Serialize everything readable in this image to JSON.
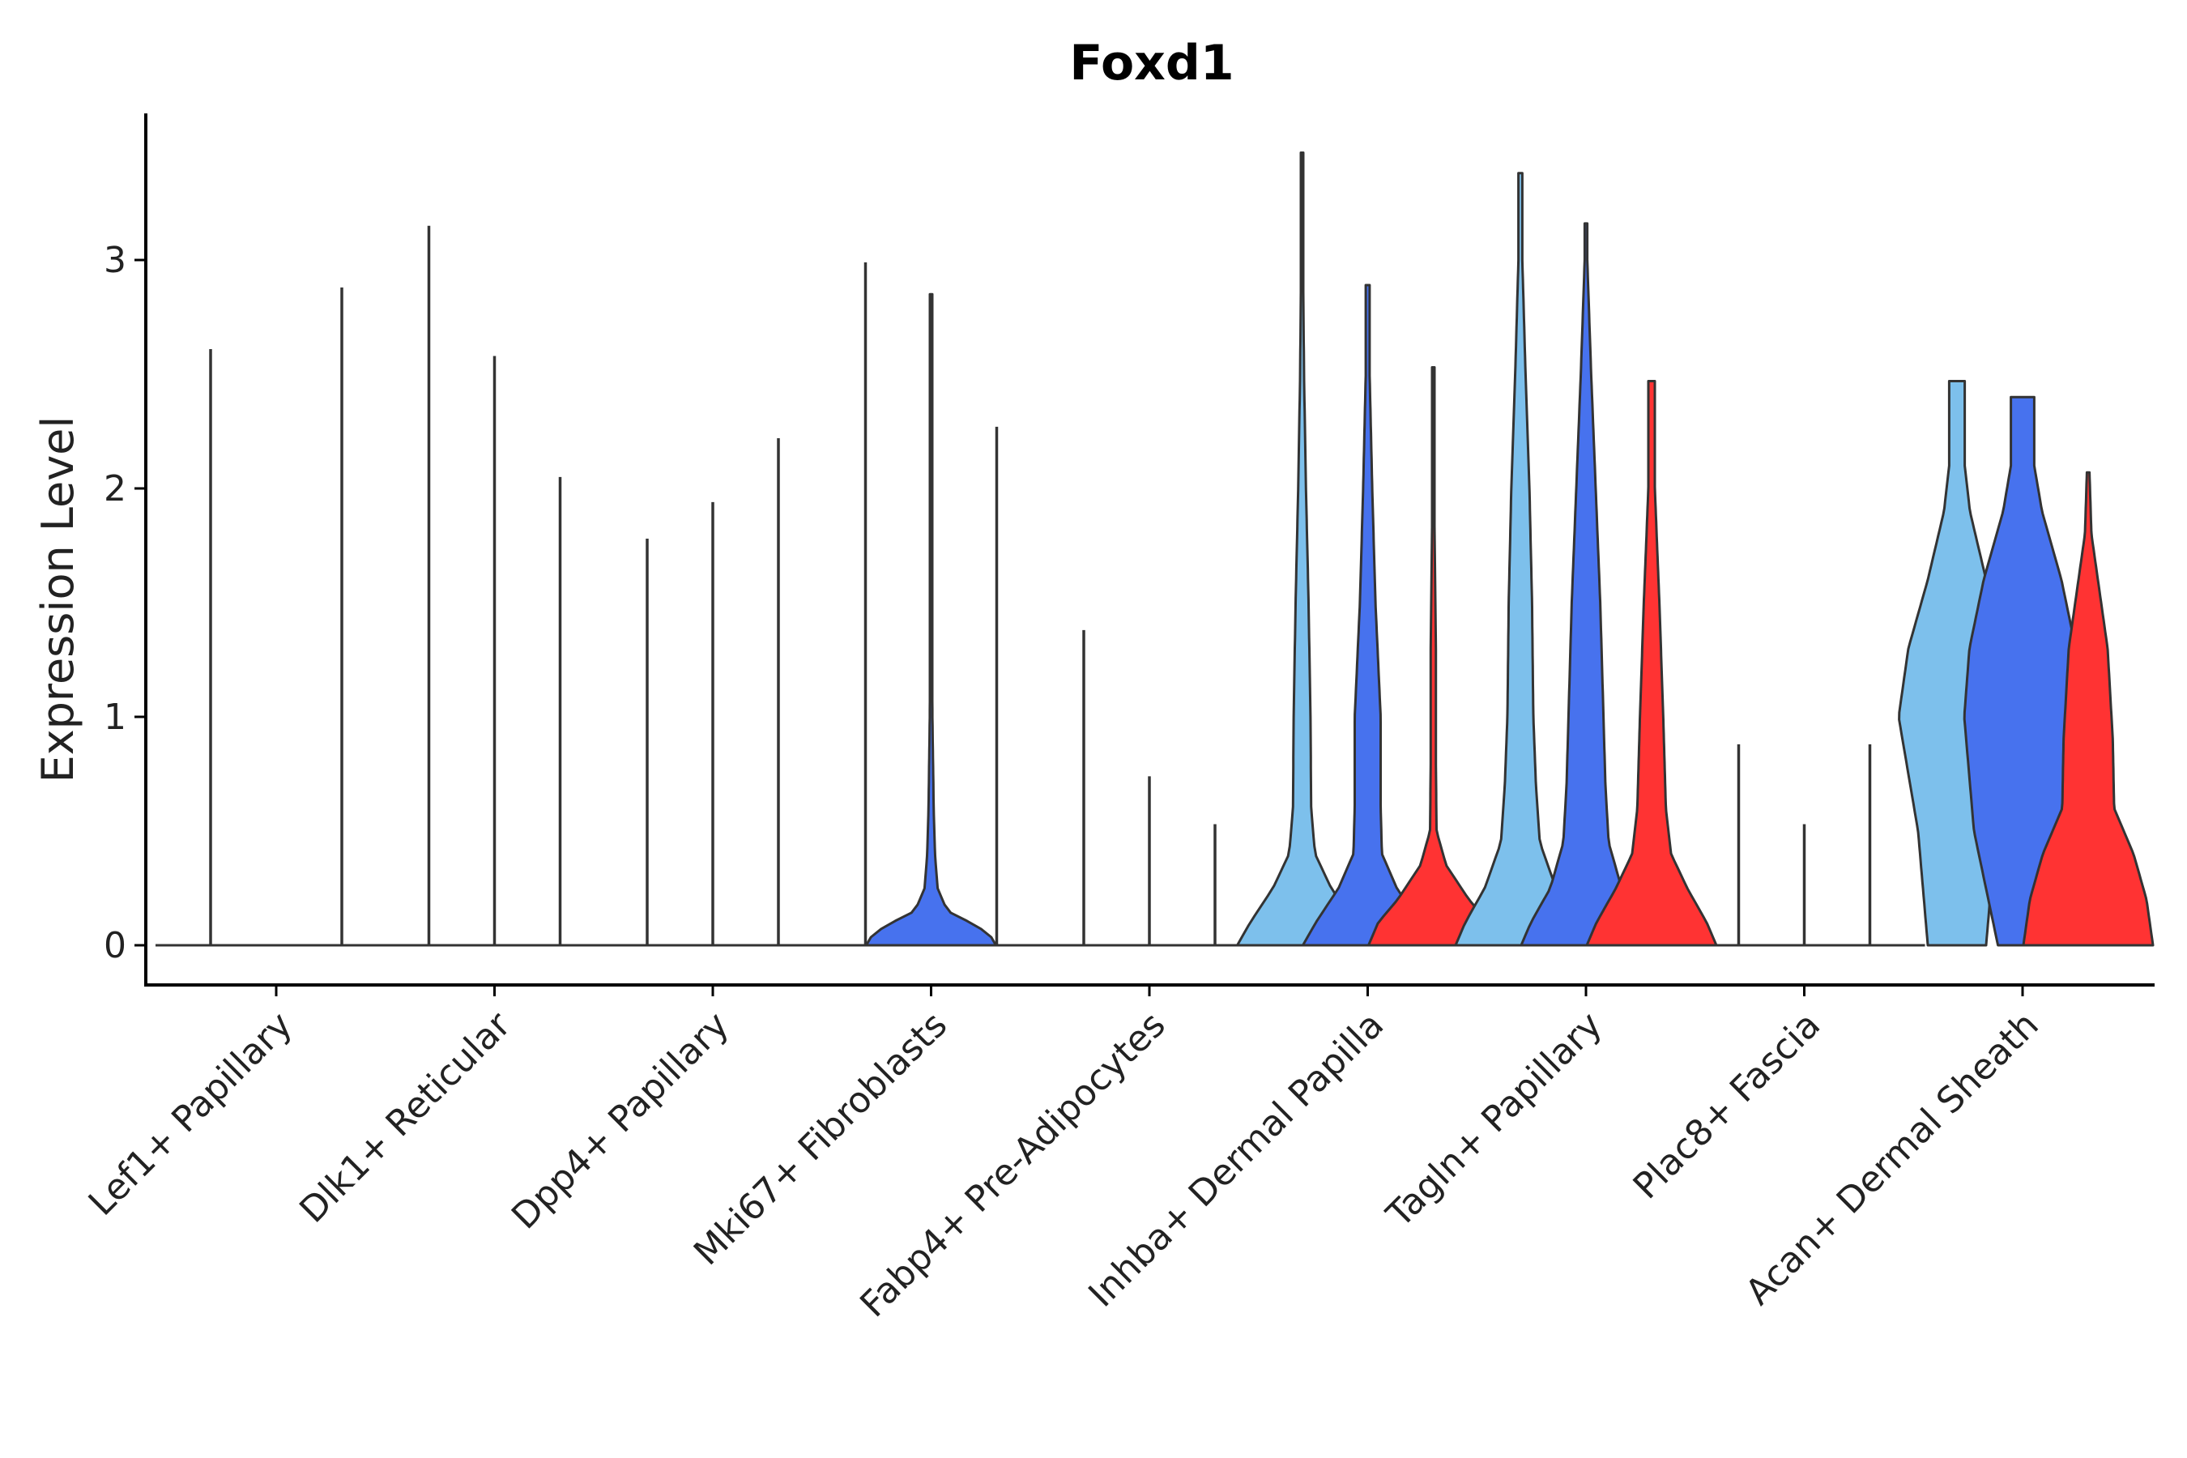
{
  "chart_data": {
    "type": "violin",
    "title": "Foxd1",
    "xlabel": "",
    "ylabel": "Expression Level",
    "ylim": [
      -0.17,
      3.65
    ],
    "yticks": [
      "0",
      "1",
      "2",
      "3"
    ],
    "grid": false,
    "legend": "none",
    "categories": [
      "Lef1+ Papillary",
      "Dlk1+ Reticular",
      "Dpp4+ Papillary",
      "Mki67+ Fibroblasts",
      "Fabp4+ Pre-Adipocytes",
      "Inhba+ Dermal Papilla",
      "Tagln+ Papillary",
      "Plac8+ Fascia",
      "Acan+ Dermal Sheath"
    ],
    "group_colors": [
      "#7DC0EC",
      "#4772EE",
      "#FF3333"
    ],
    "violins": [
      {
        "category": 0,
        "group": 0,
        "max": 2.61,
        "profile": []
      },
      {
        "category": 0,
        "group": 1,
        "max": 0.0,
        "profile": []
      },
      {
        "category": 0,
        "group": 2,
        "max": 2.88,
        "profile": []
      },
      {
        "category": 1,
        "group": 0,
        "max": 3.15,
        "profile": []
      },
      {
        "category": 1,
        "group": 1,
        "max": 2.58,
        "profile": []
      },
      {
        "category": 1,
        "group": 2,
        "max": 2.05,
        "profile": []
      },
      {
        "category": 2,
        "group": 0,
        "max": 1.78,
        "profile": []
      },
      {
        "category": 2,
        "group": 1,
        "max": 1.94,
        "profile": []
      },
      {
        "category": 2,
        "group": 2,
        "max": 2.22,
        "profile": []
      },
      {
        "category": 3,
        "group": 0,
        "max": 2.99,
        "profile": []
      },
      {
        "category": 3,
        "group": 1,
        "max": 2.85,
        "profile": [
          [
            0,
            1
          ],
          [
            0.05,
            0.9
          ],
          [
            0.1,
            0.6
          ],
          [
            0.15,
            0.25
          ],
          [
            0.25,
            0.1
          ],
          [
            0.4,
            0.06
          ],
          [
            0.6,
            0.04
          ],
          [
            1.0,
            0.02
          ],
          [
            2.0,
            0.01
          ]
        ]
      },
      {
        "category": 3,
        "group": 2,
        "max": 2.27,
        "profile": []
      },
      {
        "category": 4,
        "group": 0,
        "max": 1.38,
        "profile": []
      },
      {
        "category": 4,
        "group": 1,
        "max": 0.74,
        "profile": []
      },
      {
        "category": 4,
        "group": 2,
        "max": 0.53,
        "profile": []
      },
      {
        "category": 5,
        "group": 0,
        "max": 3.47,
        "profile": [
          [
            0,
            1
          ],
          [
            0.1,
            0.8
          ],
          [
            0.25,
            0.45
          ],
          [
            0.4,
            0.2
          ],
          [
            0.6,
            0.14
          ],
          [
            1.0,
            0.13
          ],
          [
            1.5,
            0.1
          ],
          [
            2.0,
            0.06
          ],
          [
            2.5,
            0.03
          ],
          [
            3.0,
            0.015
          ]
        ]
      },
      {
        "category": 5,
        "group": 1,
        "max": 2.89,
        "profile": [
          [
            0,
            1
          ],
          [
            0.1,
            0.8
          ],
          [
            0.25,
            0.45
          ],
          [
            0.4,
            0.22
          ],
          [
            0.6,
            0.2
          ],
          [
            1.0,
            0.2
          ],
          [
            1.5,
            0.12
          ],
          [
            2.0,
            0.07
          ],
          [
            2.5,
            0.03
          ]
        ]
      },
      {
        "category": 5,
        "group": 2,
        "max": 2.53,
        "profile": [
          [
            0,
            1
          ],
          [
            0.1,
            0.85
          ],
          [
            0.2,
            0.55
          ],
          [
            0.35,
            0.2
          ],
          [
            0.5,
            0.05
          ],
          [
            0.8,
            0.04
          ],
          [
            1.3,
            0.04
          ],
          [
            1.8,
            0.02
          ],
          [
            2.2,
            0.01
          ]
        ]
      },
      {
        "category": 6,
        "group": 0,
        "max": 3.38,
        "profile": [
          [
            0,
            1
          ],
          [
            0.1,
            0.85
          ],
          [
            0.25,
            0.55
          ],
          [
            0.45,
            0.3
          ],
          [
            0.7,
            0.24
          ],
          [
            1.0,
            0.2
          ],
          [
            1.5,
            0.18
          ],
          [
            2.0,
            0.14
          ],
          [
            2.5,
            0.08
          ],
          [
            3.0,
            0.03
          ]
        ]
      },
      {
        "category": 6,
        "group": 1,
        "max": 3.16,
        "profile": [
          [
            0,
            1
          ],
          [
            0.1,
            0.85
          ],
          [
            0.25,
            0.55
          ],
          [
            0.45,
            0.35
          ],
          [
            0.7,
            0.3
          ],
          [
            1.0,
            0.27
          ],
          [
            1.5,
            0.22
          ],
          [
            2.0,
            0.15
          ],
          [
            2.5,
            0.08
          ],
          [
            3.0,
            0.02
          ]
        ]
      },
      {
        "category": 6,
        "group": 2,
        "max": 2.47,
        "profile": [
          [
            0,
            1
          ],
          [
            0.1,
            0.85
          ],
          [
            0.25,
            0.55
          ],
          [
            0.4,
            0.3
          ],
          [
            0.6,
            0.22
          ],
          [
            1.0,
            0.18
          ],
          [
            1.5,
            0.12
          ],
          [
            2.0,
            0.05
          ]
        ]
      },
      {
        "category": 7,
        "group": 0,
        "max": 0.88,
        "profile": []
      },
      {
        "category": 7,
        "group": 1,
        "max": 0.53,
        "profile": []
      },
      {
        "category": 7,
        "group": 2,
        "max": 0.88,
        "profile": []
      },
      {
        "category": 8,
        "group": 0,
        "max": 2.47,
        "profile": [
          [
            0,
            0.45
          ],
          [
            0.5,
            0.6
          ],
          [
            1.0,
            0.9
          ],
          [
            1.3,
            0.75
          ],
          [
            1.6,
            0.45
          ],
          [
            1.9,
            0.2
          ],
          [
            2.1,
            0.12
          ],
          [
            2.47,
            0.12
          ]
        ]
      },
      {
        "category": 8,
        "group": 1,
        "max": 2.4,
        "profile": [
          [
            0,
            0.38
          ],
          [
            0.5,
            0.75
          ],
          [
            1.0,
            0.9
          ],
          [
            1.3,
            0.82
          ],
          [
            1.6,
            0.6
          ],
          [
            1.9,
            0.3
          ],
          [
            2.1,
            0.18
          ],
          [
            2.4,
            0.18
          ]
        ]
      },
      {
        "category": 8,
        "group": 2,
        "max": 2.07,
        "profile": [
          [
            0,
            1
          ],
          [
            0.2,
            0.9
          ],
          [
            0.4,
            0.7
          ],
          [
            0.6,
            0.4
          ],
          [
            0.9,
            0.38
          ],
          [
            1.3,
            0.3
          ],
          [
            1.6,
            0.15
          ],
          [
            1.8,
            0.05
          ],
          [
            2.07,
            0.02
          ]
        ]
      }
    ]
  }
}
